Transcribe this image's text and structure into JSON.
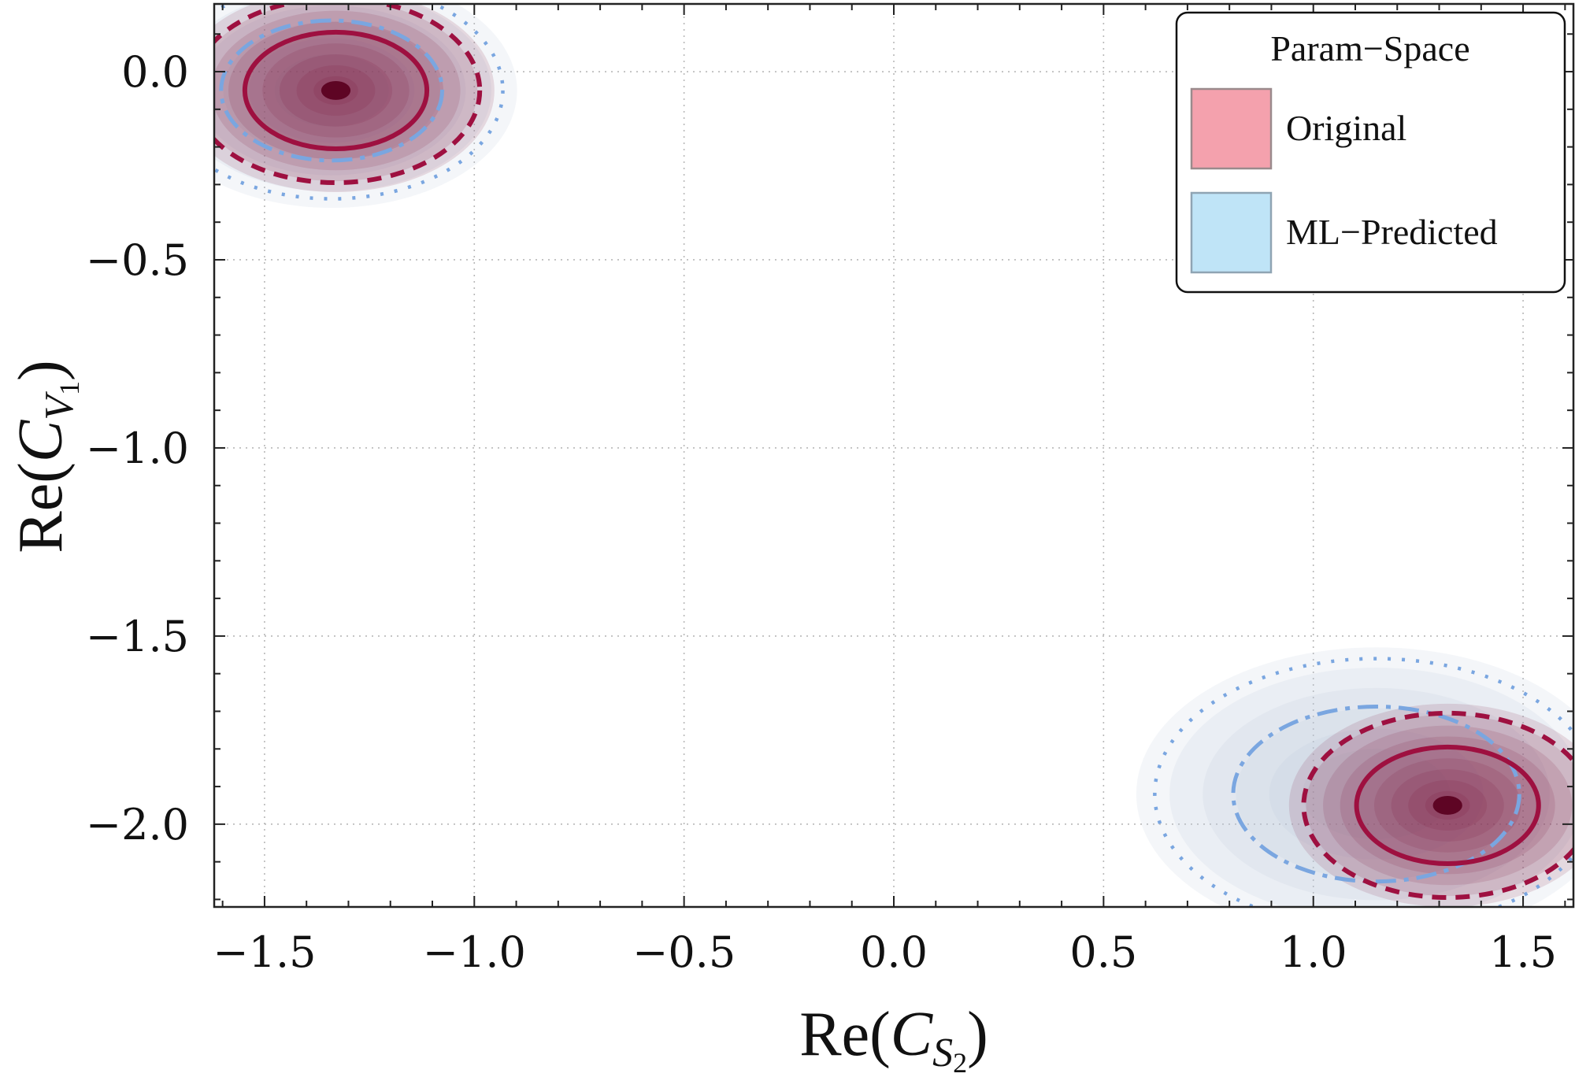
{
  "chart_data": {
    "type": "contour",
    "xlabel": {
      "prefix": "Re(",
      "symbol": "C",
      "subscript_letter": "S",
      "subscript_digit": "2",
      "suffix": ")"
    },
    "ylabel": {
      "prefix": "Re(",
      "symbol": "C",
      "subscript_letter": "V",
      "subscript_digit": "1",
      "suffix": ")"
    },
    "xlim": [
      -1.62,
      1.62
    ],
    "ylim": [
      -2.22,
      0.18
    ],
    "x_ticks": [
      -1.5,
      -1.0,
      -0.5,
      0.0,
      0.5,
      1.0,
      1.5
    ],
    "x_tick_labels": [
      "−1.5",
      "−1.0",
      "−0.5",
      "0.0",
      "0.5",
      "1.0",
      "1.5"
    ],
    "y_ticks": [
      0.0,
      -0.5,
      -1.0,
      -1.5,
      -2.0
    ],
    "y_tick_labels": [
      "0.0",
      "−0.5",
      "−1.0",
      "−1.5",
      "−2.0"
    ],
    "grid": true,
    "legend": {
      "title": "Param−Space",
      "position": "top-right",
      "entries": [
        {
          "label": "Original",
          "color": "#f4a1ad"
        },
        {
          "label": "ML−Predicted",
          "color": "#bfe4f7"
        }
      ]
    },
    "series": [
      {
        "name": "Original",
        "color": "#7d0f36",
        "line_color": "#9e1040",
        "modes": [
          {
            "center": [
              -1.33,
              -0.05
            ],
            "sigma": [
              0.14,
              0.1
            ]
          },
          {
            "center": [
              1.32,
              -1.95
            ],
            "sigma": [
              0.14,
              0.1
            ]
          }
        ]
      },
      {
        "name": "ML−Predicted",
        "color": "#b8c8d8",
        "line_color": "#7aa6e0",
        "modes": [
          {
            "center": [
              -1.34,
              -0.05
            ],
            "sigma": [
              0.17,
              0.12
            ]
          },
          {
            "center": [
              1.15,
              -1.92
            ],
            "sigma": [
              0.22,
              0.15
            ]
          }
        ]
      }
    ]
  }
}
